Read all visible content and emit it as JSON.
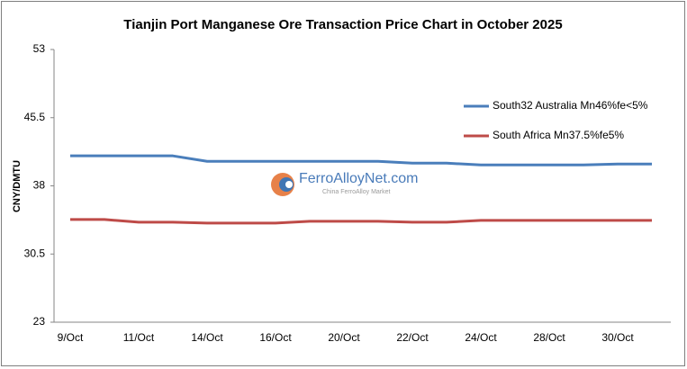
{
  "chart_data": {
    "type": "line",
    "title": "Tianjin Port Manganese Ore Transaction Price Chart in October 2025",
    "y_label": "CNY/DMTU",
    "categories": [
      "9/Oct",
      null,
      "11/Oct",
      null,
      "14/Oct",
      null,
      "16/Oct",
      null,
      "20/Oct",
      null,
      "22/Oct",
      null,
      "24/Oct",
      null,
      "28/Oct",
      null,
      "30/Oct",
      null
    ],
    "series": [
      {
        "name": "South32 Australia Mn46%fe<5%",
        "color": "#4a7ebb",
        "values": [
          41.3,
          41.3,
          41.3,
          41.3,
          40.7,
          40.7,
          40.7,
          40.7,
          40.7,
          40.7,
          40.5,
          40.5,
          40.3,
          40.3,
          40.3,
          40.3,
          40.4,
          40.4
        ]
      },
      {
        "name": "South Africa Mn37.5%fe5%",
        "color": "#be4b48",
        "values": [
          34.3,
          34.3,
          34.0,
          34.0,
          33.9,
          33.9,
          33.9,
          34.1,
          34.1,
          34.1,
          34.0,
          34.0,
          34.2,
          34.2,
          34.2,
          34.2,
          34.2,
          34.2
        ]
      }
    ],
    "ylim": [
      23,
      53
    ],
    "yticks": [
      23,
      30.5,
      38,
      45.5,
      53
    ],
    "grid": false,
    "legend": "upper right",
    "watermark": {
      "brand": "FerroAlloyNet.com",
      "tagline": "China FerroAlloy Market"
    }
  }
}
